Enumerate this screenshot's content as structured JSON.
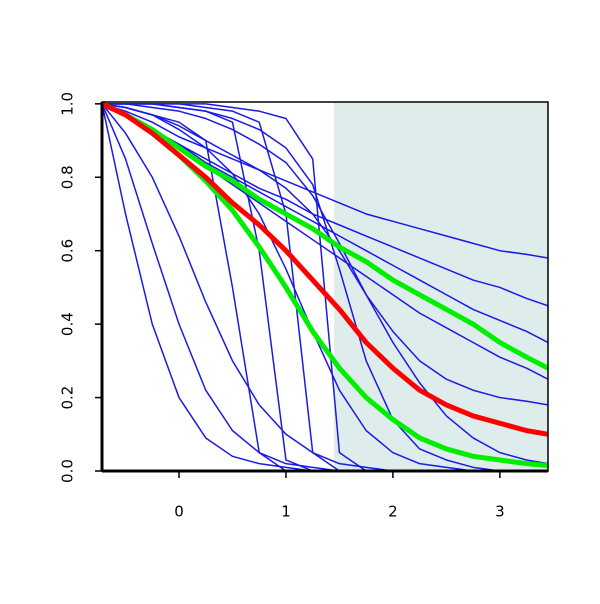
{
  "chart_data": {
    "type": "line",
    "x": [
      -0.72,
      -0.5,
      -0.25,
      0,
      0.25,
      0.5,
      0.75,
      1,
      1.25,
      1.5,
      1.75,
      2,
      2.25,
      2.5,
      2.75,
      3,
      3.25,
      3.45
    ],
    "xlim": [
      -0.72,
      3.45
    ],
    "xticks": [
      0,
      1,
      2,
      3
    ],
    "ylim": [
      0,
      1.005
    ],
    "yticks": [
      {
        "value": 0,
        "label": "0.0"
      },
      {
        "value": 0.2,
        "label": "0.2"
      },
      {
        "value": 0.4,
        "label": "0.4"
      },
      {
        "value": 0.6,
        "label": "0.6"
      },
      {
        "value": 0.8,
        "label": "0.8"
      },
      {
        "value": 1,
        "label": "1.0"
      }
    ],
    "shaded_region": {
      "xlim": [
        1.45,
        3.45
      ],
      "color": "#deeceb"
    },
    "series": [
      {
        "color": "#1a1ae6",
        "width": 1.5,
        "values": [
          1,
          0.98,
          0.95,
          0.91,
          0.88,
          0.85,
          0.82,
          0.79,
          0.76,
          0.73,
          0.7,
          0.68,
          0.66,
          0.64,
          0.62,
          0.6,
          0.59,
          0.58
        ]
      },
      {
        "color": "#1a1ae6",
        "width": 1.5,
        "values": [
          1,
          0.97,
          0.93,
          0.89,
          0.85,
          0.81,
          0.77,
          0.74,
          0.7,
          0.67,
          0.64,
          0.61,
          0.58,
          0.55,
          0.52,
          0.5,
          0.47,
          0.45
        ]
      },
      {
        "color": "#1a1ae6",
        "width": 1.5,
        "values": [
          1,
          0.97,
          0.93,
          0.89,
          0.84,
          0.8,
          0.76,
          0.72,
          0.68,
          0.64,
          0.6,
          0.56,
          0.52,
          0.48,
          0.44,
          0.41,
          0.38,
          0.35
        ]
      },
      {
        "color": "#1a1ae6",
        "width": 1.5,
        "values": [
          1,
          0.97,
          0.93,
          0.88,
          0.83,
          0.78,
          0.73,
          0.68,
          0.63,
          0.58,
          0.53,
          0.48,
          0.43,
          0.39,
          0.35,
          0.31,
          0.28,
          0.25
        ]
      },
      {
        "color": "#1a1ae6",
        "width": 1.5,
        "values": [
          1,
          0.7,
          0.4,
          0.2,
          0.09,
          0.04,
          0.02,
          0.01,
          0,
          0,
          0,
          0,
          0,
          0,
          0,
          0,
          0,
          0
        ]
      },
      {
        "color": "#1a1ae6",
        "width": 1.5,
        "values": [
          1,
          0.85,
          0.62,
          0.4,
          0.22,
          0.11,
          0.05,
          0.02,
          0.01,
          0,
          0,
          0,
          0,
          0,
          0,
          0,
          0,
          0
        ]
      },
      {
        "color": "#1a1ae6",
        "width": 1.5,
        "values": [
          1,
          0.92,
          0.8,
          0.64,
          0.46,
          0.3,
          0.18,
          0.1,
          0.05,
          0.02,
          0.01,
          0,
          0,
          0,
          0,
          0,
          0,
          0
        ]
      },
      {
        "color": "#1a1ae6",
        "width": 1.5,
        "values": [
          1,
          1,
          1,
          0.99,
          0.98,
          0.95,
          0.6,
          0.03,
          0,
          0,
          0,
          0,
          0,
          0,
          0,
          0,
          0,
          0
        ]
      },
      {
        "color": "#1a1ae6",
        "width": 1.5,
        "values": [
          1,
          1,
          1,
          1,
          1,
          0.99,
          0.98,
          0.96,
          0.85,
          0.05,
          0,
          0,
          0,
          0,
          0,
          0,
          0,
          0
        ]
      },
      {
        "color": "#1a1ae6",
        "width": 1.5,
        "values": [
          1,
          0.99,
          0.97,
          0.95,
          0.9,
          0.5,
          0.05,
          0,
          0,
          0,
          0,
          0,
          0,
          0,
          0,
          0,
          0,
          0
        ]
      },
      {
        "color": "#1a1ae6",
        "width": 1.5,
        "values": [
          1,
          1,
          1,
          0.99,
          0.98,
          0.96,
          0.93,
          0.88,
          0.78,
          0.55,
          0.3,
          0.14,
          0.06,
          0.03,
          0.01,
          0,
          0,
          0
        ]
      },
      {
        "color": "#1a1ae6",
        "width": 1.5,
        "values": [
          1,
          0.99,
          0.97,
          0.94,
          0.9,
          0.86,
          0.82,
          0.77,
          0.7,
          0.6,
          0.48,
          0.38,
          0.3,
          0.25,
          0.22,
          0.2,
          0.19,
          0.18
        ]
      },
      {
        "color": "#1a1ae6",
        "width": 1.5,
        "values": [
          1,
          1,
          0.99,
          0.98,
          0.96,
          0.93,
          0.89,
          0.84,
          0.75,
          0.62,
          0.48,
          0.35,
          0.24,
          0.15,
          0.09,
          0.05,
          0.03,
          0.02
        ]
      },
      {
        "color": "#1a1ae6",
        "width": 1.5,
        "values": [
          1,
          1,
          1,
          1,
          0.99,
          0.98,
          0.95,
          0.7,
          0.05,
          0,
          0,
          0,
          0,
          0,
          0,
          0,
          0,
          0
        ]
      },
      {
        "color": "#1a1ae6",
        "width": 1.5,
        "values": [
          1,
          0.99,
          0.97,
          0.93,
          0.88,
          0.81,
          0.7,
          0.55,
          0.38,
          0.22,
          0.11,
          0.05,
          0.02,
          0.01,
          0,
          0,
          0,
          0
        ]
      },
      {
        "color": "#00ee00",
        "width": 5,
        "values": [
          1,
          0.97,
          0.93,
          0.88,
          0.83,
          0.79,
          0.74,
          0.7,
          0.66,
          0.61,
          0.57,
          0.52,
          0.48,
          0.44,
          0.4,
          0.35,
          0.31,
          0.28
        ]
      },
      {
        "color": "#00ee00",
        "width": 5,
        "values": [
          1,
          0.97,
          0.92,
          0.86,
          0.79,
          0.71,
          0.61,
          0.5,
          0.38,
          0.28,
          0.2,
          0.14,
          0.09,
          0.06,
          0.04,
          0.03,
          0.02,
          0.015
        ]
      },
      {
        "color": "#ff0000",
        "width": 5,
        "values": [
          1,
          0.97,
          0.92,
          0.86,
          0.8,
          0.73,
          0.67,
          0.6,
          0.52,
          0.44,
          0.35,
          0.28,
          0.22,
          0.18,
          0.15,
          0.13,
          0.11,
          0.1
        ]
      }
    ]
  }
}
